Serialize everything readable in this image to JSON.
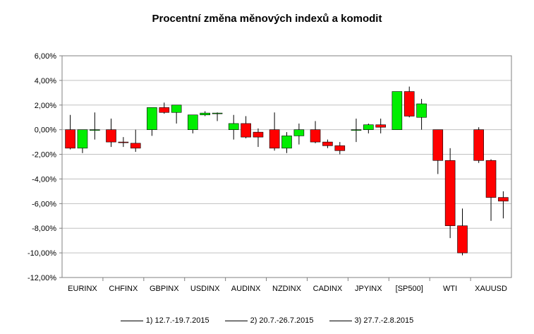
{
  "chart_data": {
    "type": "candlestick",
    "title": "Procentní změna měnových indexů a komodit",
    "categories": [
      "EURINX",
      "CHFINX",
      "GBPINX",
      "USDINX",
      "AUDINX",
      "NZDINX",
      "CADINX",
      "JPYINX",
      "[SP500]",
      "WTI",
      "XAUUSD"
    ],
    "ylim": [
      -12,
      6
    ],
    "yticks": [
      "6,00%",
      "4,00%",
      "2,00%",
      "0,00%",
      "-2,00%",
      "-4,00%",
      "-6,00%",
      "-8,00%",
      "-10,00%",
      "-12,00%"
    ],
    "grid": true,
    "legend_position": "bottom",
    "up_color": "#00ee00",
    "down_color": "#ff0000",
    "series": [
      {
        "name": "1) 12.7.-19.7.2015",
        "candles": [
          {
            "open": 0.0,
            "close": -1.5,
            "high": 1.2,
            "low": -1.6
          },
          {
            "open": 0.0,
            "close": -1.0,
            "high": 0.9,
            "low": -1.4
          },
          {
            "open": 0.0,
            "close": 1.8,
            "high": 1.8,
            "low": -0.5
          },
          {
            "open": 0.0,
            "close": 1.2,
            "high": 1.2,
            "low": -0.3
          },
          {
            "open": 0.0,
            "close": 0.5,
            "high": 1.2,
            "low": -0.8
          },
          {
            "open": 0.0,
            "close": -1.5,
            "high": 1.4,
            "low": -1.7
          },
          {
            "open": 0.0,
            "close": -1.0,
            "high": 0.7,
            "low": -1.1
          },
          {
            "open": 0.0,
            "close": 0.0,
            "high": 0.9,
            "low": -1.0
          },
          {
            "open": 0.0,
            "close": 3.1,
            "high": 3.1,
            "low": 0.0
          },
          {
            "open": 0.0,
            "close": -2.5,
            "high": 0.0,
            "low": -3.6
          },
          {
            "open": 0.0,
            "close": -2.5,
            "high": 0.2,
            "low": -2.7
          }
        ]
      },
      {
        "name": "2) 20.7.-26.7.2015",
        "candles": [
          {
            "open": -1.5,
            "close": 0.0,
            "high": 0.0,
            "low": -1.9
          },
          {
            "open": -1.0,
            "close": -1.05,
            "high": -0.6,
            "low": -1.4
          },
          {
            "open": 1.8,
            "close": 1.4,
            "high": 2.2,
            "low": 1.3
          },
          {
            "open": 1.2,
            "close": 1.35,
            "high": 1.5,
            "low": 1.1
          },
          {
            "open": 0.5,
            "close": -0.6,
            "high": 1.1,
            "low": -0.7
          },
          {
            "open": -1.5,
            "close": -0.5,
            "high": -0.2,
            "low": -1.9
          },
          {
            "open": -1.0,
            "close": -1.3,
            "high": -0.8,
            "low": -1.5
          },
          {
            "open": 0.0,
            "close": 0.4,
            "high": 0.5,
            "low": -0.3
          },
          {
            "open": 3.1,
            "close": 1.1,
            "high": 3.5,
            "low": 1.0
          },
          {
            "open": -2.5,
            "close": -7.8,
            "high": -1.5,
            "low": -8.8
          },
          {
            "open": -2.5,
            "close": -5.5,
            "high": -2.4,
            "low": -7.4
          }
        ]
      },
      {
        "name": "3) 27.7.-2.8.2015",
        "candles": [
          {
            "open": 0.0,
            "close": 0.0,
            "high": 1.4,
            "low": -0.8
          },
          {
            "open": -1.1,
            "close": -1.5,
            "high": 0.0,
            "low": -1.8
          },
          {
            "open": 1.4,
            "close": 2.0,
            "high": 2.0,
            "low": 0.5
          },
          {
            "open": 1.35,
            "close": 1.35,
            "high": 1.4,
            "low": 0.7
          },
          {
            "open": -0.2,
            "close": -0.6,
            "high": 0.1,
            "low": -1.4
          },
          {
            "open": -0.5,
            "close": 0.0,
            "high": 0.5,
            "low": -1.2
          },
          {
            "open": -1.3,
            "close": -1.7,
            "high": -1.0,
            "low": -2.0
          },
          {
            "open": 0.4,
            "close": 0.2,
            "high": 0.9,
            "low": -0.3
          },
          {
            "open": 1.0,
            "close": 2.1,
            "high": 2.5,
            "low": 0.0
          },
          {
            "open": -7.8,
            "close": -10.0,
            "high": -6.4,
            "low": -10.2
          },
          {
            "open": -5.5,
            "close": -5.8,
            "high": -5.0,
            "low": -7.2
          }
        ]
      }
    ]
  }
}
